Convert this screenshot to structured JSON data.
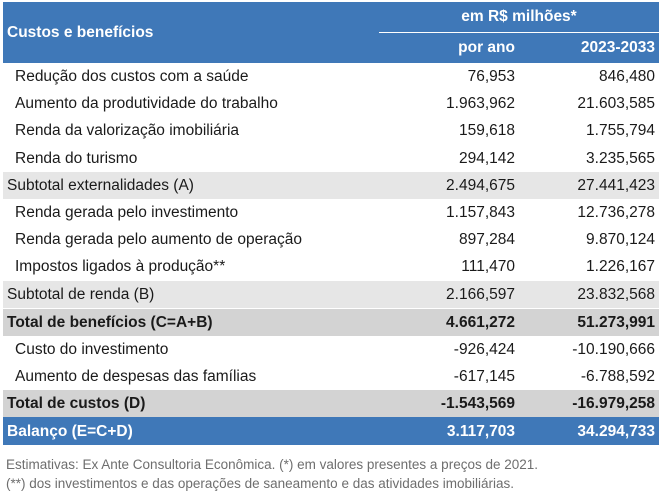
{
  "header": {
    "title": "Custos e benefícios",
    "unit": "em R$ milhões*",
    "col1": "por ano",
    "col2": "2023-2033"
  },
  "rows": [
    {
      "label": "Redução dos custos com a saúde",
      "a": "76,953",
      "b": "846,480"
    },
    {
      "label": "Aumento da produtividade do trabalho",
      "a": "1.963,962",
      "b": "21.603,585"
    },
    {
      "label": "Renda da valorização imobiliária",
      "a": "159,618",
      "b": "1.755,794"
    },
    {
      "label": "Renda do turismo",
      "a": "294,142",
      "b": "3.235,565"
    },
    {
      "label": "Subtotal externalidades (A)",
      "a": "2.494,675",
      "b": "27.441,423"
    },
    {
      "label": "Renda gerada pelo investimento",
      "a": "1.157,843",
      "b": "12.736,278"
    },
    {
      "label": "Renda gerada pelo aumento de operação",
      "a": "897,284",
      "b": "9.870,124"
    },
    {
      "label": "Impostos ligados à produção**",
      "a": "111,470",
      "b": "1.226,167"
    },
    {
      "label": "Subtotal de renda (B)",
      "a": "2.166,597",
      "b": "23.832,568"
    },
    {
      "label": "Total de benefícios (C=A+B)",
      "a": "4.661,272",
      "b": "51.273,991"
    },
    {
      "label": "Custo do investimento",
      "a": "-926,424",
      "b": "-10.190,666"
    },
    {
      "label": "Aumento de despesas das famílias",
      "a": "-617,145",
      "b": "-6.788,592"
    },
    {
      "label": "Total de custos (D)",
      "a": "-1.543,569",
      "b": "-16.979,258"
    },
    {
      "label": "Balanço (E=C+D)",
      "a": "3.117,703",
      "b": "34.294,733"
    }
  ],
  "notes": {
    "line1": "Estimativas: Ex Ante Consultoria Econômica. (*) em valores presentes a preços de 2021.",
    "line2": "(**) dos investimentos e das operações de saneamento e das atividades imobiliárias."
  }
}
